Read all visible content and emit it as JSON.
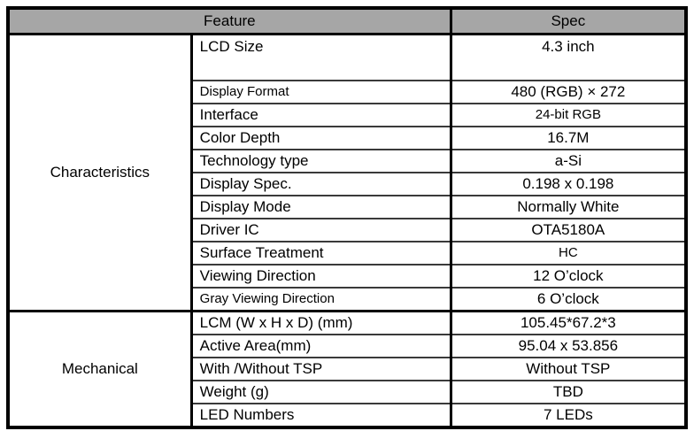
{
  "header": {
    "feature": "Feature",
    "spec": "Spec"
  },
  "sections": [
    {
      "category": "Characteristics",
      "rows": [
        {
          "feature": "LCD Size",
          "spec": "4.3 inch"
        },
        {
          "feature": "Display Format",
          "spec": "480 (RGB) × 272"
        },
        {
          "feature": "Interface",
          "spec": "24-bit RGB"
        },
        {
          "feature": "Color Depth",
          "spec": "16.7M"
        },
        {
          "feature": "Technology type",
          "spec": "a-Si"
        },
        {
          "feature": "Display Spec.",
          "spec": "0.198 x 0.198"
        },
        {
          "feature": "Display Mode",
          "spec": "Normally White"
        },
        {
          "feature": "Driver IC",
          "spec": "OTA5180A"
        },
        {
          "feature": "Surface Treatment",
          "spec": "HC"
        },
        {
          "feature": "Viewing Direction",
          "spec": "12 O’clock"
        },
        {
          "feature": "Gray Viewing Direction",
          "spec": "6 O’clock"
        }
      ]
    },
    {
      "category": "Mechanical",
      "rows": [
        {
          "feature": "LCM (W x H x D) (mm)",
          "spec": "105.45*67.2*3"
        },
        {
          "feature": "Active Area(mm)",
          "spec": "95.04 x 53.856"
        },
        {
          "feature": "With /Without TSP",
          "spec": "Without TSP"
        },
        {
          "feature": "Weight (g)",
          "spec": "TBD"
        },
        {
          "feature": "LED Numbers",
          "spec": "7 LEDs"
        }
      ]
    }
  ],
  "colors": {
    "header_bg": "#a6a6a6",
    "border": "#000000",
    "row_line": "#3a3a3a",
    "text": "#000000"
  }
}
